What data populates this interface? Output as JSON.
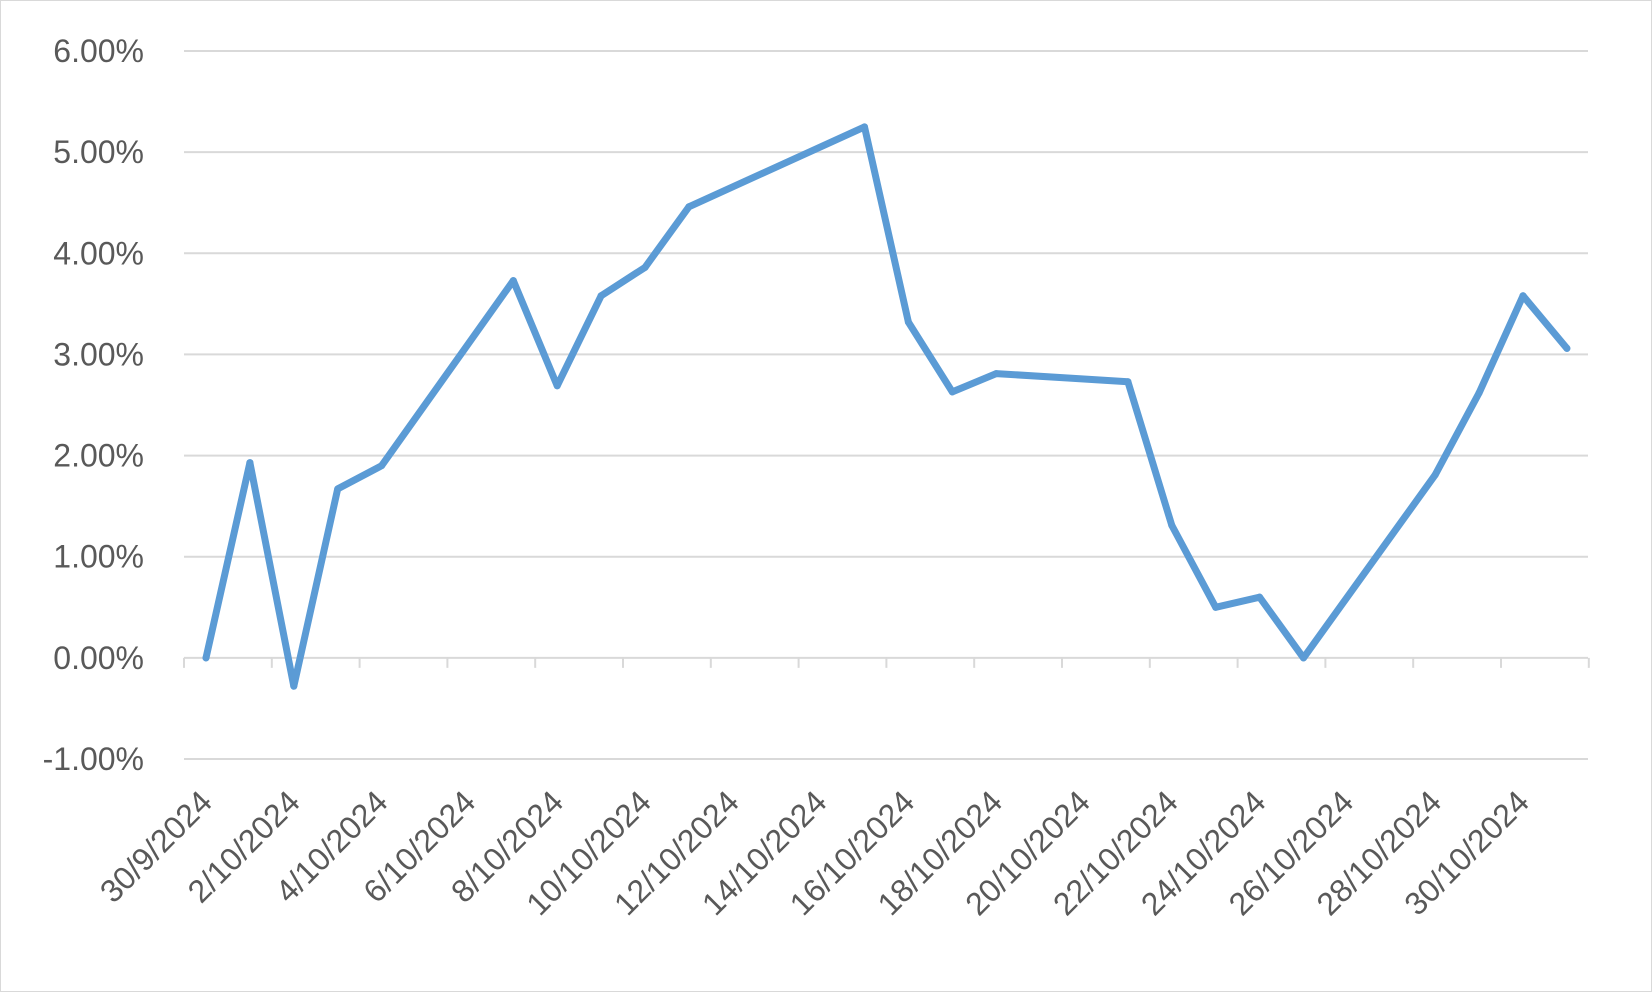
{
  "chart_data": {
    "type": "line",
    "title": "",
    "xlabel": "",
    "ylabel": "",
    "ylim": [
      -0.01,
      0.06
    ],
    "y_ticks": [
      "-1.00%",
      "0.00%",
      "1.00%",
      "2.00%",
      "3.00%",
      "4.00%",
      "5.00%",
      "6.00%"
    ],
    "x_range": [
      "2024-09-30",
      "2024-11-01"
    ],
    "x_tick_labels": [
      "30/9/2024",
      "2/10/2024",
      "4/10/2024",
      "6/10/2024",
      "8/10/2024",
      "10/10/2024",
      "12/10/2024",
      "14/10/2024",
      "16/10/2024",
      "18/10/2024",
      "20/10/2024",
      "22/10/2024",
      "24/10/2024",
      "26/10/2024",
      "28/10/2024",
      "30/10/2024"
    ],
    "grid": true,
    "legend": "none",
    "series": [
      {
        "color": "#5b9bd5",
        "points": [
          {
            "x": "2024-09-30",
            "y": 0.0
          },
          {
            "x": "2024-10-01",
            "y": 0.0193
          },
          {
            "x": "2024-10-02",
            "y": -0.0028
          },
          {
            "x": "2024-10-03",
            "y": 0.0167
          },
          {
            "x": "2024-10-04",
            "y": 0.019
          },
          {
            "x": "2024-10-07",
            "y": 0.0373
          },
          {
            "x": "2024-10-08",
            "y": 0.0269
          },
          {
            "x": "2024-10-09",
            "y": 0.0358
          },
          {
            "x": "2024-10-10",
            "y": 0.0386
          },
          {
            "x": "2024-10-11",
            "y": 0.0446
          },
          {
            "x": "2024-10-15",
            "y": 0.0525
          },
          {
            "x": "2024-10-16",
            "y": 0.0332
          },
          {
            "x": "2024-10-17",
            "y": 0.0263
          },
          {
            "x": "2024-10-18",
            "y": 0.0281
          },
          {
            "x": "2024-10-21",
            "y": 0.0273
          },
          {
            "x": "2024-10-22",
            "y": 0.0131
          },
          {
            "x": "2024-10-23",
            "y": 0.005
          },
          {
            "x": "2024-10-24",
            "y": 0.006
          },
          {
            "x": "2024-10-25",
            "y": 0.0
          },
          {
            "x": "2024-10-28",
            "y": 0.0181
          },
          {
            "x": "2024-10-29",
            "y": 0.0262
          },
          {
            "x": "2024-10-30",
            "y": 0.0358
          },
          {
            "x": "2024-10-31",
            "y": 0.0306
          }
        ]
      }
    ]
  }
}
